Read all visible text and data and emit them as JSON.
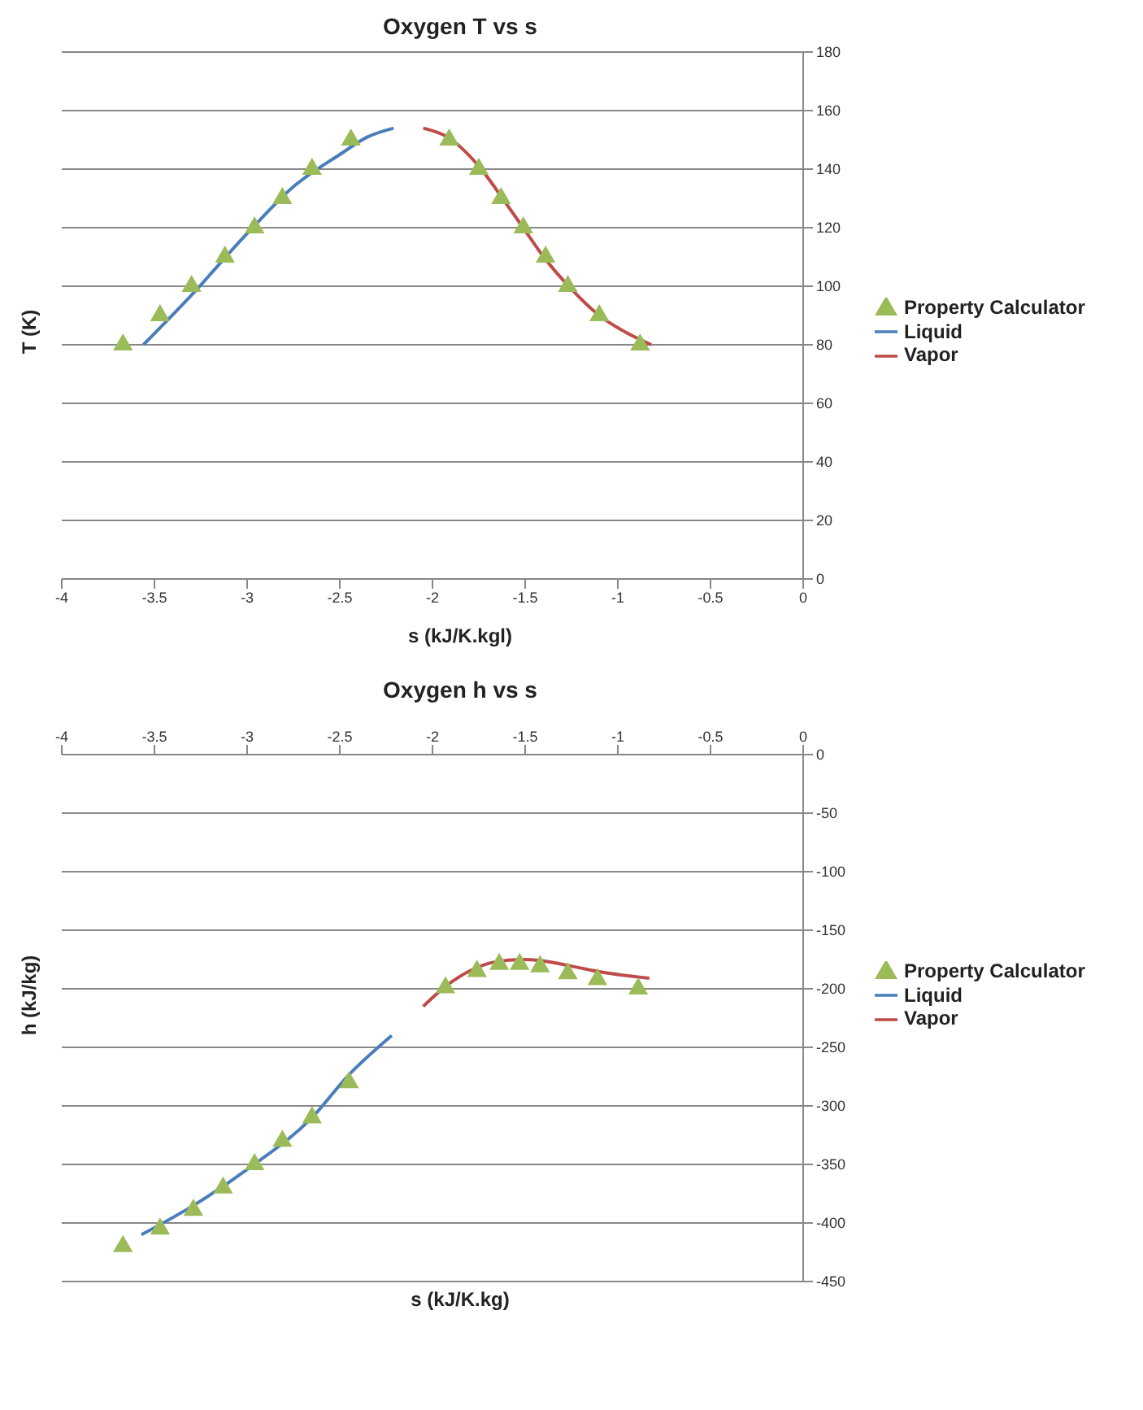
{
  "chart_data": [
    {
      "type": "scatter",
      "title": "Oxygen T vs s",
      "xlabel": "s (kJ/K.kgl)",
      "ylabel": "T (K)",
      "xlim": [
        -4,
        0
      ],
      "xticks": [
        -4,
        -3.5,
        -3,
        -2.5,
        -2,
        -1.5,
        -1,
        -0.5,
        0
      ],
      "ylim": [
        0,
        180
      ],
      "yticks": [
        0,
        20,
        40,
        60,
        80,
        100,
        120,
        140,
        160,
        180
      ],
      "grid": "y",
      "legend": "right",
      "series": [
        {
          "name": "Property Calculator",
          "marker": "triangle",
          "color": "#9bbb59",
          "x": [
            -3.67,
            -3.47,
            -3.3,
            -3.12,
            -2.96,
            -2.81,
            -2.65,
            -2.44,
            -1.91,
            -1.75,
            -1.63,
            -1.51,
            -1.39,
            -1.27,
            -1.1,
            -0.88
          ],
          "values": [
            80,
            90,
            100,
            110,
            120,
            130,
            140,
            150,
            150,
            140,
            130,
            120,
            110,
            100,
            90,
            80
          ]
        },
        {
          "name": "Liquid",
          "type": "line",
          "marker": "none",
          "color": "#4a7ebb",
          "x": [
            -3.56,
            -3.3,
            -3.0,
            -2.75,
            -2.5,
            -2.35,
            -2.21
          ],
          "values": [
            80,
            97,
            118,
            134,
            145,
            151,
            154
          ]
        },
        {
          "name": "Vapor",
          "type": "line",
          "marker": "none",
          "color": "#be4b48",
          "x": [
            -2.05,
            -1.92,
            -1.75,
            -1.6,
            -1.5,
            -1.4,
            -1.25,
            -1.1,
            -0.95,
            -0.82
          ],
          "values": [
            154,
            151,
            141,
            128,
            119,
            110,
            99,
            90,
            84,
            80
          ]
        }
      ]
    },
    {
      "type": "scatter",
      "title": "Oxygen h vs s",
      "xlabel": "s (kJ/K.kg)",
      "ylabel": "h (kJ/kg)",
      "xlim": [
        -4,
        0
      ],
      "xticks": [
        -4,
        -3.5,
        -3,
        -2.5,
        -2,
        -1.5,
        -1,
        -0.5,
        0
      ],
      "ylim": [
        -450,
        0
      ],
      "yticks": [
        -450,
        -400,
        -350,
        -300,
        -250,
        -200,
        -150,
        -100,
        -50,
        0
      ],
      "grid": "y",
      "legend": "right",
      "series": [
        {
          "name": "Property Calculator",
          "marker": "triangle",
          "color": "#9bbb59",
          "x": [
            -3.67,
            -3.47,
            -3.29,
            -3.13,
            -2.96,
            -2.81,
            -2.65,
            -2.45,
            -1.93,
            -1.76,
            -1.64,
            -1.53,
            -1.42,
            -1.27,
            -1.11,
            -0.89
          ],
          "values": [
            -420,
            -405,
            -389,
            -370,
            -350,
            -330,
            -310,
            -280,
            -199,
            -185,
            -179,
            -179,
            -181,
            -187,
            -192,
            -200
          ]
        },
        {
          "name": "Liquid",
          "type": "line",
          "marker": "none",
          "color": "#4a7ebb",
          "x": [
            -3.57,
            -3.3,
            -2.98,
            -2.65,
            -2.46,
            -2.22
          ],
          "values": [
            -410,
            -386,
            -352,
            -310,
            -275,
            -240
          ]
        },
        {
          "name": "Vapor",
          "type": "line",
          "marker": "none",
          "color": "#be4b48",
          "x": [
            -2.05,
            -1.93,
            -1.79,
            -1.66,
            -1.52,
            -1.41,
            -1.24,
            -1.08,
            -0.83
          ],
          "values": [
            -215,
            -198,
            -184,
            -177,
            -175,
            -176,
            -181,
            -186,
            -191
          ]
        }
      ]
    }
  ]
}
